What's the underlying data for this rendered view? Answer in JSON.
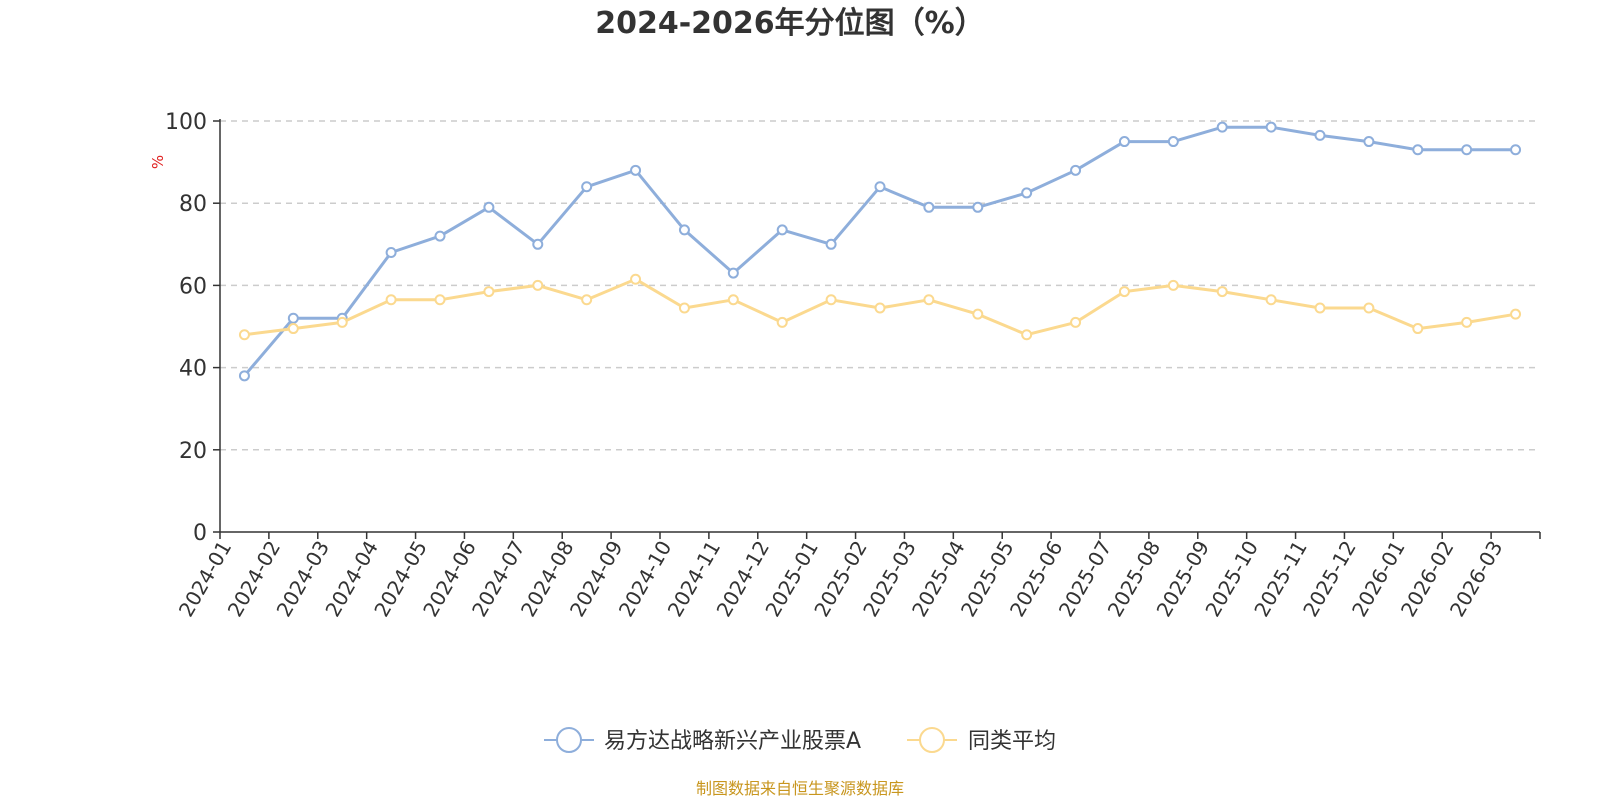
{
  "chart_data": {
    "type": "line",
    "title": "2024-2026年分位图（%）",
    "ylabel": "%",
    "xlabel": "",
    "ylim": [
      0,
      100
    ],
    "yticks": [
      0,
      20,
      40,
      60,
      80,
      100
    ],
    "grid": true,
    "legend_position": "bottom",
    "categories": [
      "2024-01",
      "2024-02",
      "2024-03",
      "2024-04",
      "2024-05",
      "2024-06",
      "2024-07",
      "2024-08",
      "2024-09",
      "2024-10",
      "2024-11",
      "2024-12",
      "2025-01",
      "2025-02",
      "2025-03",
      "2025-04",
      "2025-05",
      "2025-06",
      "2025-07",
      "2025-08",
      "2025-09",
      "2025-10",
      "2025-11",
      "2025-12",
      "2026-01",
      "2026-02",
      "2026-03"
    ],
    "series": [
      {
        "name": "易方达战略新兴产业股票A",
        "color": "#8eaedb",
        "values": [
          38,
          52,
          52,
          68,
          72,
          79,
          70,
          84,
          88,
          73.5,
          63,
          73.5,
          70,
          84,
          79,
          79,
          82.5,
          88,
          95,
          95,
          98.5,
          98.5,
          96.5,
          95,
          93,
          93,
          93
        ]
      },
      {
        "name": "同类平均",
        "color": "#fbd98f",
        "values": [
          48,
          49.5,
          51,
          56.5,
          56.5,
          58.5,
          60,
          56.5,
          61.5,
          54.5,
          56.5,
          51,
          56.5,
          54.5,
          56.5,
          53,
          48,
          51,
          58.5,
          60,
          58.5,
          56.5,
          54.5,
          54.5,
          49.5,
          51,
          53
        ]
      }
    ]
  },
  "source": "制图数据来自恒生聚源数据库"
}
